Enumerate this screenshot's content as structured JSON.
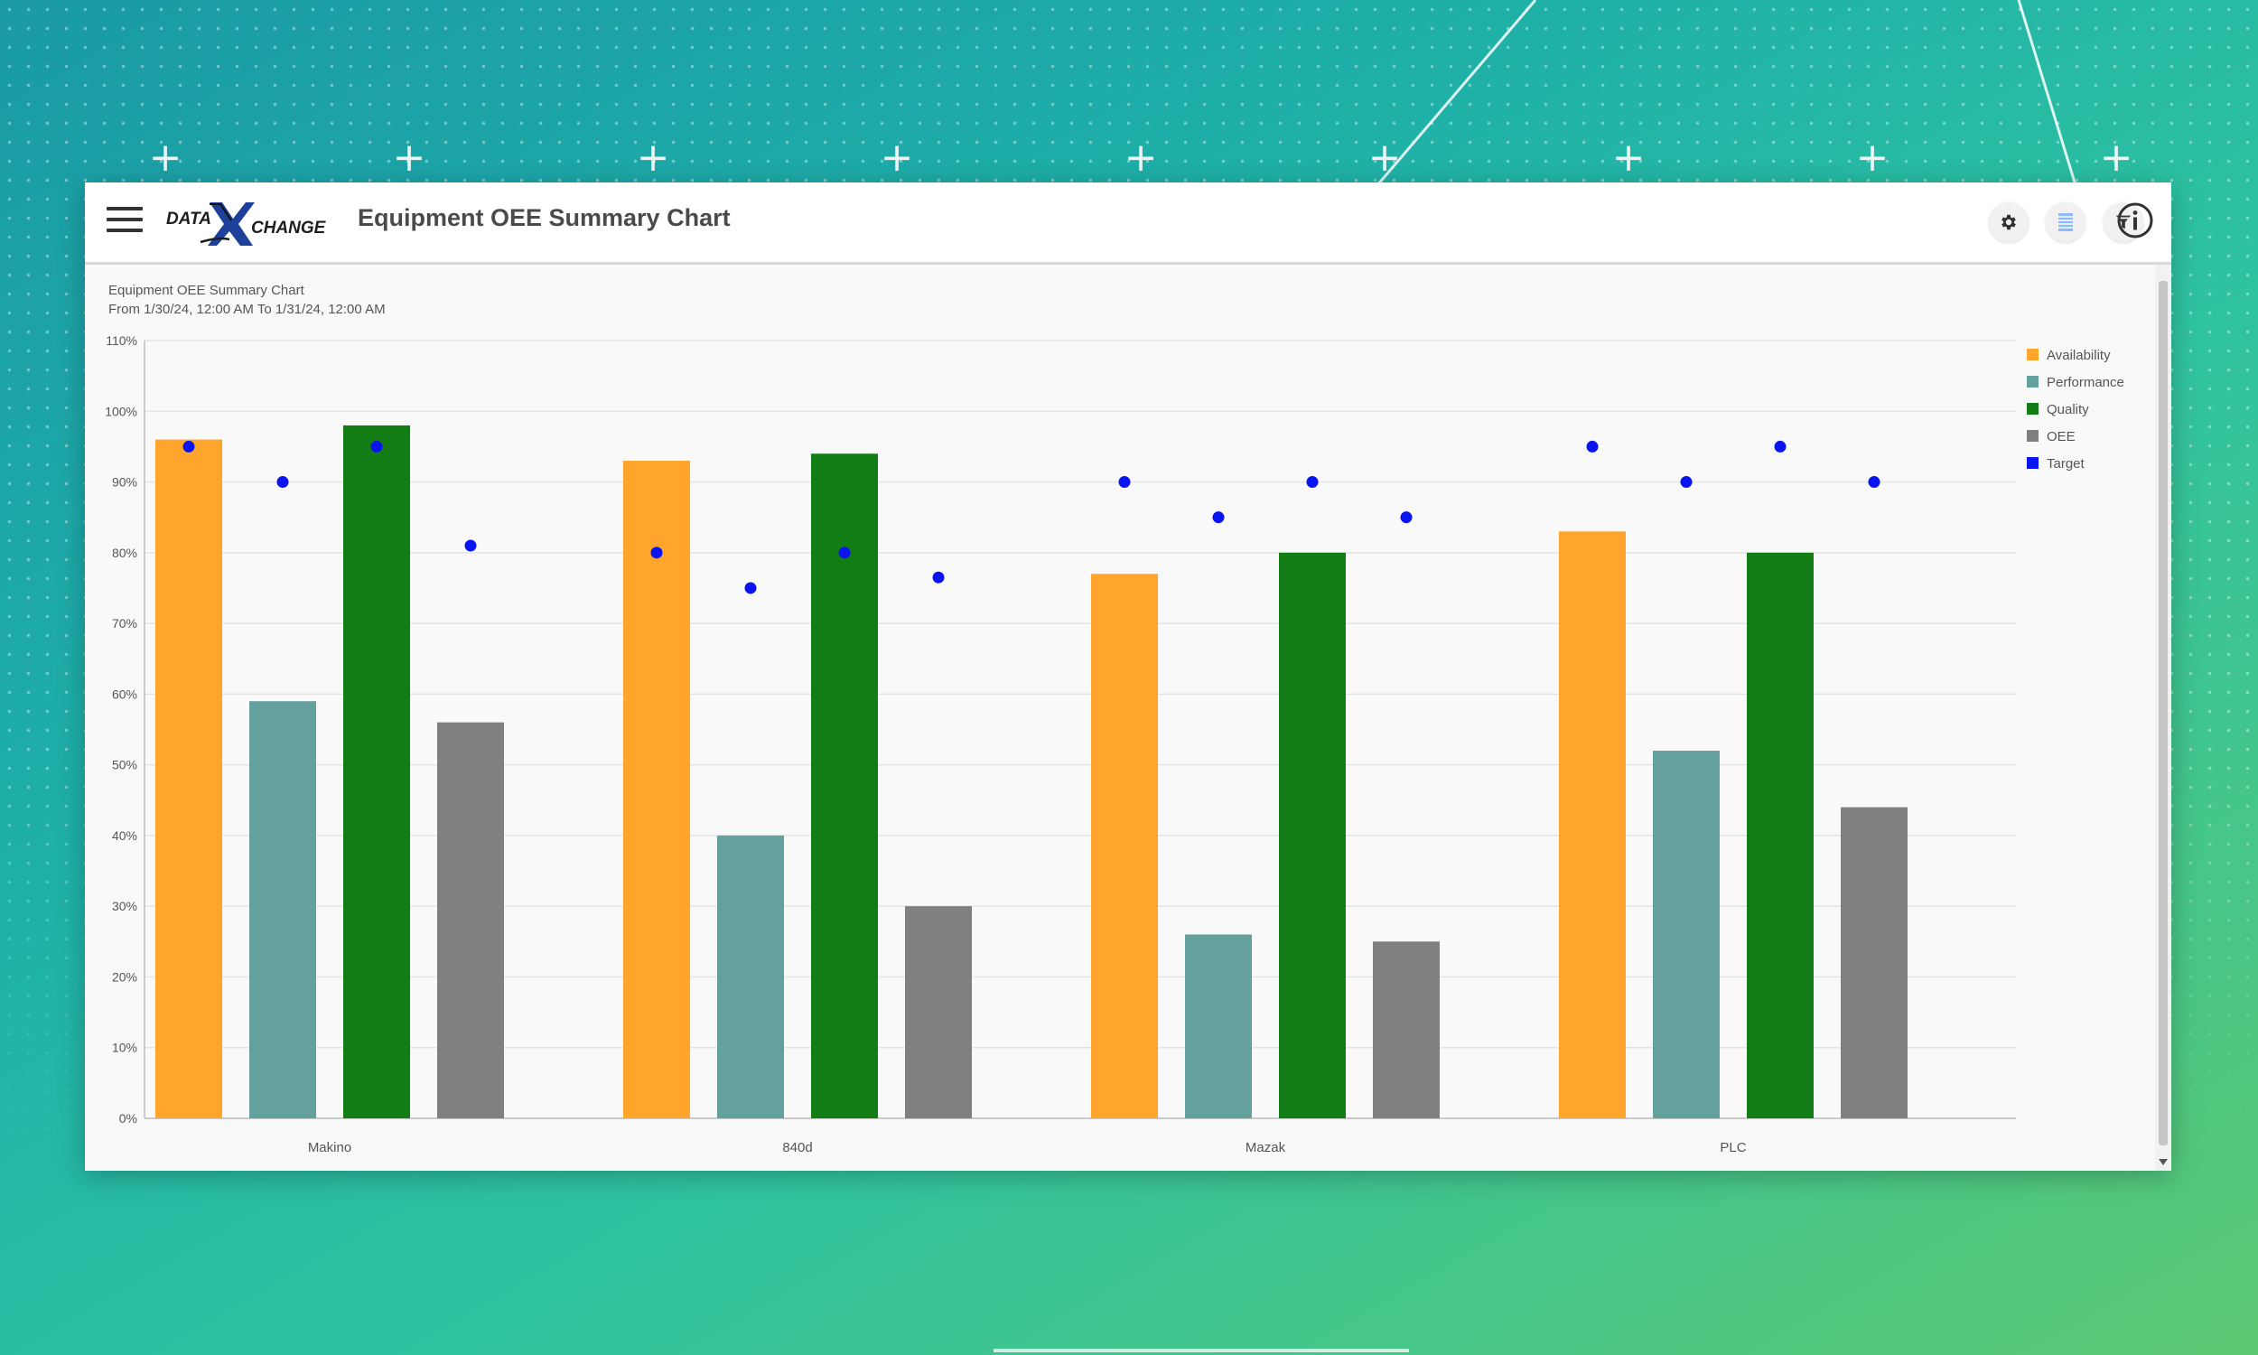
{
  "app": {
    "title": "Equipment OEE Summary Chart",
    "logo_text": "DATA X CHANGE"
  },
  "toolbar": {
    "settings_icon": "gear-icon",
    "data_icon": "table-icon",
    "filter_icon": "filter-icon",
    "info_icon": "info-icon"
  },
  "colors": {
    "availability": "#ffa52b",
    "performance": "#64a09e",
    "quality": "#127d14",
    "oee": "#808080",
    "target": "#0a14f0",
    "title_text": "#4a4a4a"
  },
  "chart_data": {
    "type": "bar",
    "title": "Equipment OEE Summary Chart",
    "subtitle": "From 1/30/24, 12:00 AM To 1/31/24, 12:00 AM",
    "categories": [
      "Makino",
      "840d",
      "Mazak",
      "PLC"
    ],
    "series": [
      {
        "name": "Availability",
        "type": "bar",
        "color": "#ffa52b",
        "values": [
          96,
          93,
          77,
          83
        ]
      },
      {
        "name": "Performance",
        "type": "bar",
        "color": "#64a09e",
        "values": [
          59,
          40,
          26,
          52
        ]
      },
      {
        "name": "Quality",
        "type": "bar",
        "color": "#127d14",
        "values": [
          98,
          94,
          80,
          80
        ]
      },
      {
        "name": "OEE",
        "type": "bar",
        "color": "#808080",
        "values": [
          56,
          30,
          25,
          44
        ]
      }
    ],
    "target": {
      "name": "Target",
      "type": "scatter",
      "color": "#0a14f0",
      "values": [
        [
          95,
          90,
          95,
          81
        ],
        [
          80,
          75,
          80,
          76.5
        ],
        [
          90,
          85,
          90,
          85
        ],
        [
          95,
          90,
          95,
          90
        ]
      ]
    },
    "legend": [
      "Availability",
      "Performance",
      "Quality",
      "OEE",
      "Target"
    ],
    "legend_position": "right",
    "y_ticks": [
      "0%",
      "10%",
      "20%",
      "30%",
      "40%",
      "50%",
      "60%",
      "70%",
      "80%",
      "90%",
      "100%",
      "110%"
    ],
    "ylim": [
      0,
      110
    ],
    "grid": true
  }
}
